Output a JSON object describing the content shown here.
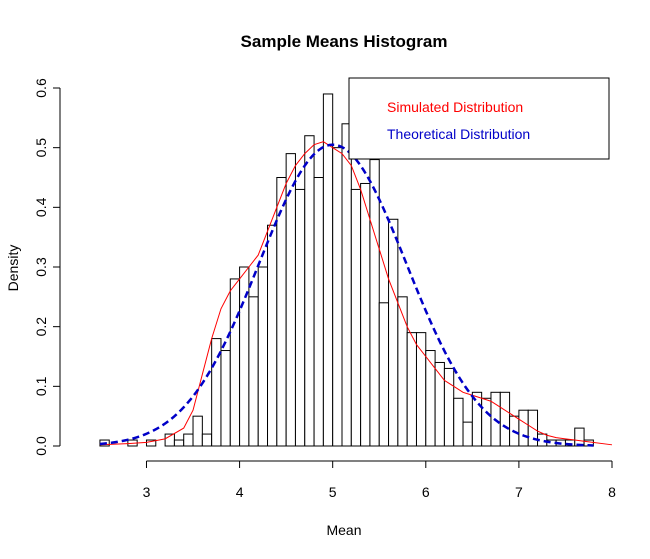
{
  "chart_data": {
    "type": "histogram",
    "title": "Sample Means Histogram",
    "xlabel": "Mean",
    "ylabel": "Density",
    "xlim": [
      2.2,
      8.0
    ],
    "ylim": [
      0,
      0.6
    ],
    "x_ticks": [
      3,
      4,
      5,
      6,
      7,
      8
    ],
    "y_ticks": [
      0.0,
      0.1,
      0.2,
      0.3,
      0.4,
      0.5,
      0.6
    ],
    "x_tick_labels": [
      "3",
      "4",
      "5",
      "6",
      "7",
      "8"
    ],
    "y_tick_labels": [
      "0.0",
      "0.1",
      "0.2",
      "0.3",
      "0.4",
      "0.5",
      "0.6"
    ],
    "grid": false,
    "bin_width": 0.1,
    "bins_start": [
      2.5,
      2.6,
      2.7,
      2.8,
      2.9,
      3.0,
      3.1,
      3.2,
      3.3,
      3.4,
      3.5,
      3.6,
      3.7,
      3.8,
      3.9,
      4.0,
      4.1,
      4.2,
      4.3,
      4.4,
      4.5,
      4.6,
      4.7,
      4.8,
      4.9,
      5.0,
      5.1,
      5.2,
      5.3,
      5.4,
      5.5,
      5.6,
      5.7,
      5.8,
      5.9,
      6.0,
      6.1,
      6.2,
      6.3,
      6.4,
      6.5,
      6.6,
      6.7,
      6.8,
      6.9,
      7.0,
      7.1,
      7.2,
      7.3,
      7.4,
      7.5,
      7.6,
      7.7
    ],
    "densities": [
      0.01,
      0.0,
      0.0,
      0.01,
      0.0,
      0.01,
      0.0,
      0.02,
      0.01,
      0.02,
      0.05,
      0.02,
      0.18,
      0.16,
      0.28,
      0.3,
      0.25,
      0.3,
      0.37,
      0.45,
      0.49,
      0.43,
      0.52,
      0.45,
      0.59,
      0.5,
      0.54,
      0.43,
      0.44,
      0.48,
      0.24,
      0.38,
      0.25,
      0.19,
      0.19,
      0.16,
      0.14,
      0.13,
      0.08,
      0.04,
      0.09,
      0.08,
      0.09,
      0.09,
      0.05,
      0.06,
      0.06,
      0.02,
      0.01,
      0.01,
      0.01,
      0.03,
      0.01
    ],
    "series": [
      {
        "name": "Simulated Distribution",
        "color": "#ff0000",
        "style": "solid",
        "x": [
          2.5,
          2.8,
          3.0,
          3.2,
          3.4,
          3.5,
          3.6,
          3.7,
          3.8,
          3.9,
          4.0,
          4.1,
          4.2,
          4.3,
          4.4,
          4.5,
          4.6,
          4.7,
          4.8,
          4.9,
          5.0,
          5.1,
          5.2,
          5.3,
          5.4,
          5.5,
          5.6,
          5.7,
          5.8,
          5.9,
          6.0,
          6.1,
          6.2,
          6.3,
          6.4,
          6.5,
          6.6,
          6.7,
          6.8,
          6.9,
          7.0,
          7.1,
          7.2,
          7.3,
          7.4,
          7.5,
          7.6,
          7.7,
          8.0
        ],
        "y": [
          0.002,
          0.004,
          0.006,
          0.012,
          0.03,
          0.06,
          0.12,
          0.18,
          0.23,
          0.26,
          0.28,
          0.3,
          0.32,
          0.36,
          0.4,
          0.44,
          0.47,
          0.49,
          0.505,
          0.51,
          0.5,
          0.49,
          0.47,
          0.43,
          0.38,
          0.33,
          0.28,
          0.24,
          0.2,
          0.17,
          0.15,
          0.13,
          0.11,
          0.1,
          0.09,
          0.085,
          0.08,
          0.075,
          0.065,
          0.055,
          0.045,
          0.035,
          0.025,
          0.018,
          0.014,
          0.012,
          0.01,
          0.008,
          0.002
        ]
      },
      {
        "name": "Theoretical Distribution",
        "color": "#0000c8",
        "style": "dashed",
        "mean": 5.0,
        "sd": 0.79
      }
    ],
    "legend": {
      "position": "top-right",
      "entries": [
        "Simulated Distribution",
        "Theoretical Distribution"
      ],
      "colors": [
        "#ff0000",
        "#0000c8"
      ]
    }
  }
}
